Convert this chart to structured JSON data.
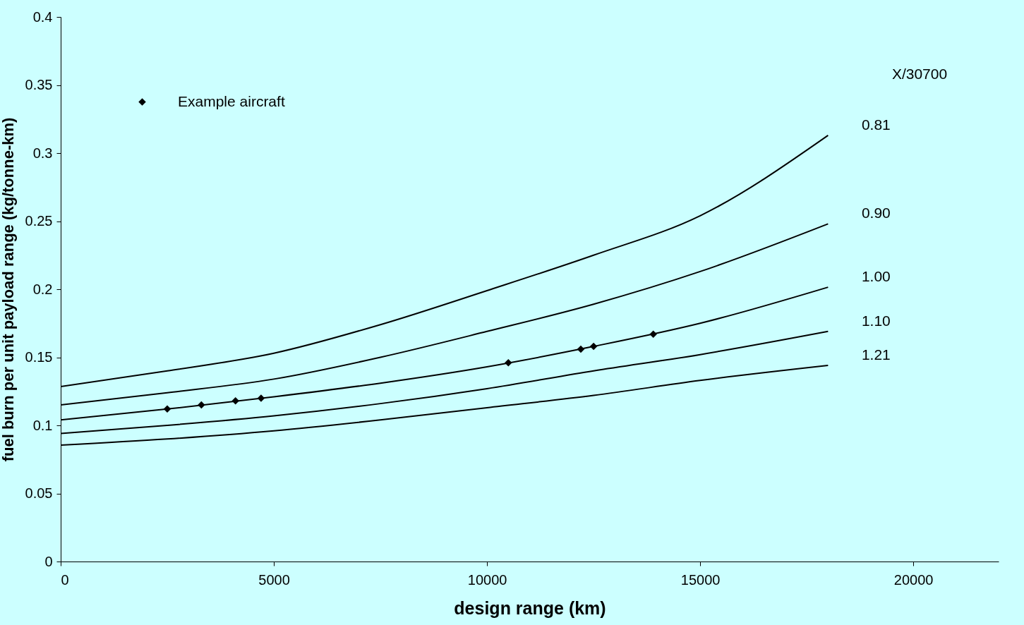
{
  "chart_data": {
    "type": "line",
    "xlabel": "design range (km)",
    "ylabel": "fuel burn per unit payload range (kg/tonne-km)",
    "x": [
      0,
      2500,
      5000,
      7500,
      10000,
      12500,
      15000,
      18000
    ],
    "series": [
      {
        "name": "0.81",
        "color": "#000000",
        "values": [
          0.1285,
          0.14,
          0.153,
          0.174,
          0.199,
          0.225,
          0.254,
          0.313
        ]
      },
      {
        "name": "0.90",
        "color": "#000000",
        "values": [
          0.115,
          0.124,
          0.134,
          0.15,
          0.169,
          0.189,
          0.213,
          0.248
        ]
      },
      {
        "name": "1.00",
        "color": "#000000",
        "values": [
          0.104,
          0.112,
          0.121,
          0.131,
          0.143,
          0.158,
          0.175,
          0.2015
        ]
      },
      {
        "name": "1.10",
        "color": "#000000",
        "values": [
          0.094,
          0.1,
          0.107,
          0.116,
          0.127,
          0.14,
          0.152,
          0.169
        ]
      },
      {
        "name": "1.21",
        "color": "#000000",
        "values": [
          0.0855,
          0.09,
          0.096,
          0.104,
          0.113,
          0.122,
          0.133,
          0.144
        ]
      },
      {
        "name": "Example aircraft",
        "type": "scatter",
        "marker": "diamond",
        "color": "#000000",
        "x": [
          2500,
          3300,
          4100,
          4700,
          10500,
          12200,
          12500,
          13900
        ],
        "values": [
          0.112,
          0.115,
          0.118,
          0.12,
          0.146,
          0.156,
          0.158,
          0.167
        ]
      }
    ],
    "annotations": [
      "X/30700"
    ],
    "xlim": [
      0,
      22000
    ],
    "xticks": [
      0,
      5000,
      10000,
      15000,
      20000
    ],
    "ylim": [
      0,
      0.4
    ],
    "yticks": [
      0,
      0.05,
      0.1,
      0.15,
      0.2,
      0.25,
      0.3,
      0.35,
      0.4
    ],
    "grid": false,
    "legend": "top left",
    "line_style": "solid"
  }
}
